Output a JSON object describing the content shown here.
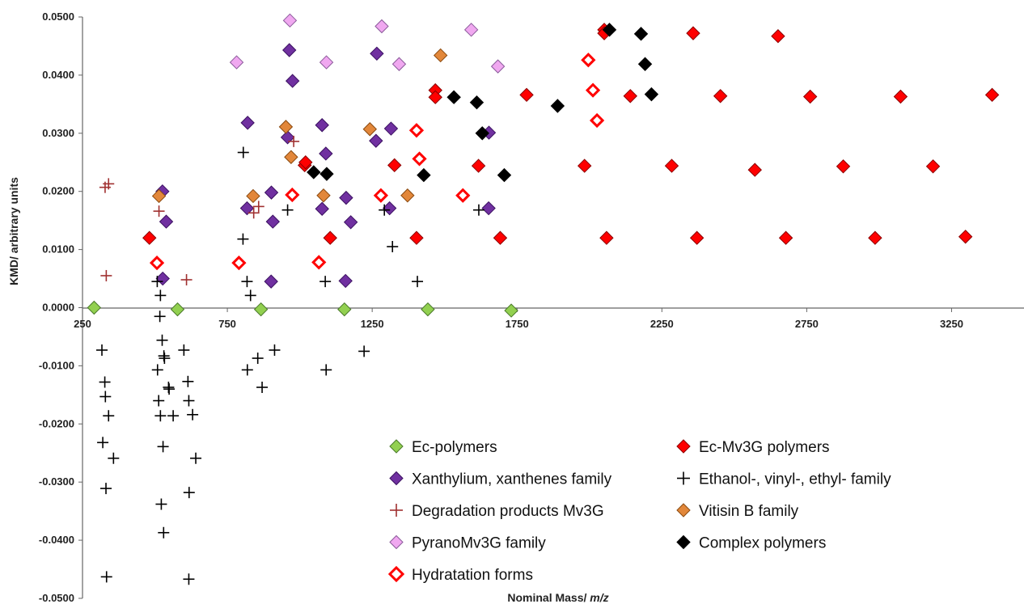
{
  "chart_data": {
    "type": "scatter",
    "title": "",
    "xlabel_main": "Nominal Mass/ ",
    "xlabel_italic": "m/z",
    "ylabel": "KMD/ arbitrary units",
    "xlim": [
      250,
      3500
    ],
    "ylim": [
      -0.05,
      0.05
    ],
    "x_ticks": [
      250,
      750,
      1250,
      1750,
      2250,
      2750,
      3250
    ],
    "y_ticks": [
      0.05,
      0.04,
      0.03,
      0.02,
      0.01,
      0.0,
      -0.01,
      -0.02,
      -0.03,
      -0.04,
      -0.05
    ],
    "y_tick_labels": [
      "0.0500",
      "0.0400",
      "0.0300",
      "0.0200",
      "0.0100",
      "0.0000",
      "-0.0100",
      "-0.0200",
      "-0.0300",
      "-0.0400",
      "-0.0500"
    ],
    "grid": false,
    "legend_position": "bottom-right",
    "series": [
      {
        "name": "Ec-polymers",
        "marker": "diamond",
        "color": "#92d050",
        "stroke": "#4a7a2a",
        "filled": true,
        "points": [
          [
            290,
            0.0
          ],
          [
            578,
            -0.0003
          ],
          [
            866,
            -0.0003
          ],
          [
            1154,
            -0.0003
          ],
          [
            1442,
            -0.0003
          ],
          [
            1730,
            -0.0005
          ]
        ]
      },
      {
        "name": "Ec-Mv3G polymers",
        "marker": "diamond",
        "color": "#ff0000",
        "stroke": "#8b0000",
        "filled": true,
        "points": [
          [
            481,
            0.012
          ],
          [
            1017,
            0.0245
          ],
          [
            1020,
            0.025
          ],
          [
            1105,
            0.012
          ],
          [
            1327,
            0.0245
          ],
          [
            1403,
            0.012
          ],
          [
            1468,
            0.0374
          ],
          [
            1468,
            0.0362
          ],
          [
            1617,
            0.0244
          ],
          [
            1692,
            0.012
          ],
          [
            1783,
            0.0366
          ],
          [
            1983,
            0.0244
          ],
          [
            2051,
            0.0478
          ],
          [
            2051,
            0.0472
          ],
          [
            2059,
            0.012
          ],
          [
            2141,
            0.0364
          ],
          [
            2284,
            0.0244
          ],
          [
            2358,
            0.0472
          ],
          [
            2371,
            0.012
          ],
          [
            2452,
            0.0364
          ],
          [
            2571,
            0.0237
          ],
          [
            2651,
            0.0467
          ],
          [
            2678,
            0.012
          ],
          [
            2762,
            0.0363
          ],
          [
            2876,
            0.0243
          ],
          [
            2986,
            0.012
          ],
          [
            3074,
            0.0363
          ],
          [
            3186,
            0.0243
          ],
          [
            3298,
            0.0122
          ],
          [
            3390,
            0.0366
          ]
        ]
      },
      {
        "name": "Xanthylium, xanthenes family",
        "marker": "diamond",
        "color": "#7030a0",
        "stroke": "#3a1060",
        "filled": true,
        "points": [
          [
            526,
            0.02
          ],
          [
            539,
            0.0148
          ],
          [
            527,
            0.005
          ],
          [
            820,
            0.0318
          ],
          [
            818,
            0.0171
          ],
          [
            902,
            0.0198
          ],
          [
            907,
            0.0148
          ],
          [
            901,
            0.0045
          ],
          [
            964,
            0.0443
          ],
          [
            975,
            0.039
          ],
          [
            958,
            0.0293
          ],
          [
            1077,
            0.0314
          ],
          [
            1090,
            0.0265
          ],
          [
            1077,
            0.017
          ],
          [
            1160,
            0.0189
          ],
          [
            1176,
            0.0147
          ],
          [
            1158,
            0.0046
          ],
          [
            1266,
            0.0437
          ],
          [
            1263,
            0.0287
          ],
          [
            1315,
            0.0308
          ],
          [
            1310,
            0.0171
          ],
          [
            1653,
            0.0301
          ],
          [
            1652,
            0.0171
          ]
        ]
      },
      {
        "name": "Ethanol-, vinyl-, ethyl- family",
        "marker": "plus",
        "color": "#000000",
        "stroke": "#000000",
        "filled": false,
        "points": [
          [
            317,
            -0.0073
          ],
          [
            320,
            -0.0232
          ],
          [
            327,
            -0.0128
          ],
          [
            329,
            -0.0153
          ],
          [
            331,
            -0.0311
          ],
          [
            333,
            -0.0463
          ],
          [
            340,
            -0.0186
          ],
          [
            357,
            -0.0259
          ],
          [
            508,
            0.0045
          ],
          [
            519,
            0.0021
          ],
          [
            509,
            -0.0107
          ],
          [
            517,
            -0.0015
          ],
          [
            513,
            -0.016
          ],
          [
            519,
            -0.0186
          ],
          [
            522,
            -0.0338
          ],
          [
            525,
            -0.0056
          ],
          [
            531,
            -0.0083
          ],
          [
            533,
            -0.0087
          ],
          [
            528,
            -0.0239
          ],
          [
            530,
            -0.0387
          ],
          [
            549,
            -0.014
          ],
          [
            547,
            -0.0137
          ],
          [
            563,
            -0.0186
          ],
          [
            600,
            -0.0073
          ],
          [
            614,
            -0.0127
          ],
          [
            617,
            -0.016
          ],
          [
            618,
            -0.0318
          ],
          [
            617,
            -0.0467
          ],
          [
            630,
            -0.0184
          ],
          [
            641,
            -0.0259
          ],
          [
            805,
            0.0267
          ],
          [
            804,
            0.0118
          ],
          [
            818,
            0.0045
          ],
          [
            830,
            0.0021
          ],
          [
            819,
            -0.0107
          ],
          [
            855,
            -0.0087
          ],
          [
            870,
            -0.0137
          ],
          [
            913,
            -0.0073
          ],
          [
            958,
            0.0168
          ],
          [
            1088,
            0.0045
          ],
          [
            1091,
            -0.0107
          ],
          [
            1222,
            -0.0075
          ],
          [
            1292,
            0.0168
          ],
          [
            1320,
            0.0105
          ],
          [
            1406,
            0.0045
          ],
          [
            1618,
            0.0168
          ]
        ]
      },
      {
        "name": "Degradation products Mv3G",
        "marker": "plus",
        "color": "#a03030",
        "stroke": "#a03030",
        "filled": false,
        "points": [
          [
            328,
            0.0207
          ],
          [
            340,
            0.0213
          ],
          [
            332,
            0.0055
          ],
          [
            514,
            0.0166
          ],
          [
            609,
            0.0048
          ],
          [
            841,
            0.0163
          ],
          [
            858,
            0.0174
          ],
          [
            979,
            0.0286
          ]
        ]
      },
      {
        "name": "Vitisin B family",
        "marker": "diamond",
        "color": "#e2873a",
        "stroke": "#8a4a10",
        "filled": true,
        "points": [
          [
            514,
            0.0192
          ],
          [
            839,
            0.0192
          ],
          [
            952,
            0.0311
          ],
          [
            970,
            0.0259
          ],
          [
            1082,
            0.0193
          ],
          [
            1242,
            0.0307
          ],
          [
            1372,
            0.0193
          ],
          [
            1486,
            0.0434
          ]
        ]
      },
      {
        "name": "PyranoMv3G family",
        "marker": "diamond",
        "color": "#f0a8f0",
        "stroke": "#8a5a9a",
        "filled": true,
        "points": [
          [
            782,
            0.0422
          ],
          [
            966,
            0.0494
          ],
          [
            1092,
            0.0422
          ],
          [
            1283,
            0.0484
          ],
          [
            1343,
            0.0419
          ],
          [
            1592,
            0.0478
          ],
          [
            1684,
            0.0415
          ]
        ]
      },
      {
        "name": "Complex polymers",
        "marker": "diamond",
        "color": "#000000",
        "stroke": "#000000",
        "filled": true,
        "points": [
          [
            1048,
            0.0233
          ],
          [
            1093,
            0.023
          ],
          [
            1428,
            0.0228
          ],
          [
            1532,
            0.0362
          ],
          [
            1611,
            0.0353
          ],
          [
            1630,
            0.03
          ],
          [
            1706,
            0.0228
          ],
          [
            1890,
            0.0347
          ],
          [
            2069,
            0.0478
          ],
          [
            2178,
            0.0471
          ],
          [
            2192,
            0.0419
          ],
          [
            2214,
            0.0367
          ]
        ]
      },
      {
        "name": "Hydratation forms",
        "marker": "diamond-open",
        "color": "#ffffff",
        "stroke": "#ff0000",
        "filled": false,
        "points": [
          [
            507,
            0.0077
          ],
          [
            790,
            0.0077
          ],
          [
            974,
            0.0194
          ],
          [
            1066,
            0.0078
          ],
          [
            1280,
            0.0193
          ],
          [
            1403,
            0.0305
          ],
          [
            1413,
            0.0256
          ],
          [
            1563,
            0.0193
          ],
          [
            1996,
            0.0426
          ],
          [
            2012,
            0.0374
          ],
          [
            2026,
            0.0322
          ]
        ]
      }
    ]
  }
}
